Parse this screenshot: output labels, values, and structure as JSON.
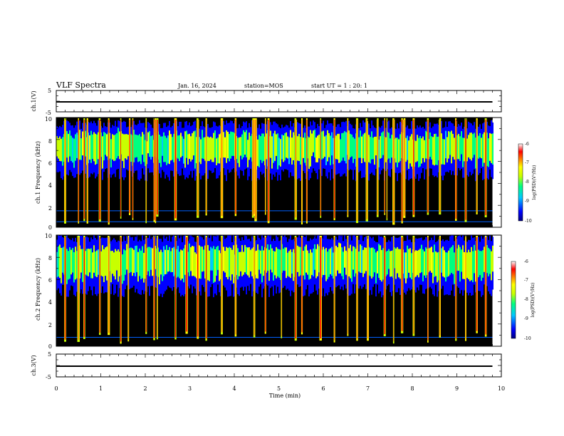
{
  "header": {
    "title": "VLF Spectra",
    "date": "Jan. 16, 2024",
    "station": "station=MOS",
    "start": "start UT =  1 : 20: 1"
  },
  "colors": {
    "background": "#000000",
    "colormap": [
      "#000080",
      "#0000ff",
      "#00c8ff",
      "#00ff80",
      "#c8ff00",
      "#ffff00",
      "#ff8000",
      "#ff0000",
      "#ffffff"
    ]
  },
  "chart_data": [
    {
      "type": "line",
      "panel": "ch1-waveform",
      "ylabel": "ch.1(V)",
      "ylim": [
        -5,
        5
      ],
      "yticks": [
        "5",
        "-5"
      ],
      "x": [
        0,
        9.8
      ],
      "values": [
        0,
        0
      ]
    },
    {
      "type": "heatmap",
      "panel": "ch1-spectrogram",
      "ylabel": "ch.1 Frequency (kHz)",
      "xlim": [
        0,
        10
      ],
      "ylim": [
        0,
        10
      ],
      "yticks": [
        "0",
        "2",
        "4",
        "6",
        "8",
        "10"
      ],
      "data_xlim": [
        0,
        9.8
      ],
      "band_khz": [
        4.8,
        9.2
      ],
      "colorbar": {
        "label": "log(PSD)(V²/Hz)",
        "ticks": [
          "-6",
          "-7",
          "-8",
          "-9",
          "-10"
        ],
        "range": [
          -10,
          -6
        ]
      },
      "lines_khz": [
        0.5,
        1.5
      ],
      "spikes_min": [
        0.2,
        0.5,
        0.63,
        0.7,
        0.98,
        1.18,
        1.45,
        1.65,
        1.72,
        2.02,
        2.2,
        2.23,
        2.27,
        2.68,
        3.18,
        3.37,
        3.72,
        4.03,
        4.42,
        4.45,
        4.48,
        4.7,
        4.77,
        5.38,
        5.52,
        5.63,
        5.94,
        6.25,
        6.55,
        6.76,
        6.98,
        7.22,
        7.38,
        7.43,
        7.58,
        7.77,
        7.82,
        8.03,
        8.35,
        8.62,
        8.98,
        9.2,
        9.45,
        9.65
      ]
    },
    {
      "type": "heatmap",
      "panel": "ch2-spectrogram",
      "ylabel": "ch.2 Frequency (kHz)",
      "xlim": [
        0,
        10
      ],
      "ylim": [
        0,
        10
      ],
      "yticks": [
        "0",
        "2",
        "4",
        "6",
        "8",
        "10"
      ],
      "data_xlim": [
        0,
        9.8
      ],
      "band_khz": [
        5.0,
        9.6
      ],
      "colorbar": {
        "label": "log(PSD)(V²/Hz)",
        "ticks": [
          "-6",
          "-7",
          "-8",
          "-9",
          "-10"
        ],
        "range": [
          -10,
          -6
        ]
      },
      "lines_khz": [
        0.8
      ],
      "spikes_min": [
        0.2,
        0.5,
        0.63,
        0.98,
        1.18,
        1.45,
        1.62,
        2.02,
        2.2,
        2.27,
        2.68,
        2.93,
        3.18,
        3.37,
        3.72,
        4.03,
        4.45,
        4.7,
        5.06,
        5.38,
        5.52,
        5.94,
        6.25,
        6.55,
        6.76,
        7.0,
        7.38,
        7.58,
        7.77,
        8.03,
        8.35,
        8.62,
        8.98,
        9.2,
        9.45,
        9.65
      ]
    },
    {
      "type": "line",
      "panel": "ch3-waveform",
      "ylabel": "ch.3(V)",
      "xlabel": "Time (min)",
      "xlim": [
        0,
        10
      ],
      "xticks": [
        "0",
        "1",
        "2",
        "3",
        "4",
        "5",
        "6",
        "7",
        "8",
        "9",
        "10"
      ],
      "ylim": [
        -5,
        5
      ],
      "yticks": [
        "5",
        "-5"
      ],
      "x": [
        0,
        9.8
      ],
      "values": [
        0,
        0
      ]
    }
  ]
}
